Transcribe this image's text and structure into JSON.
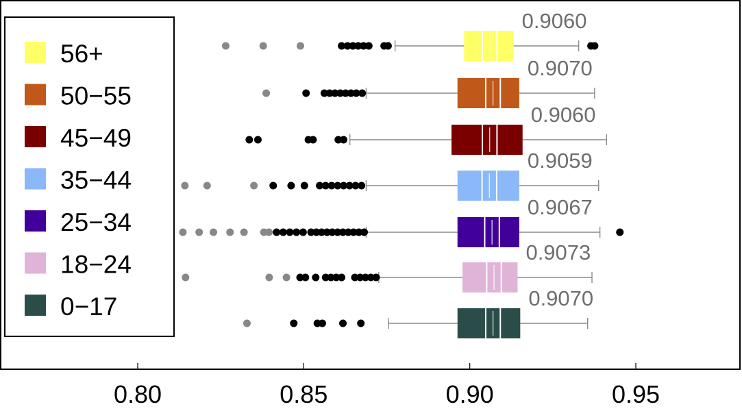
{
  "chart_data": {
    "type": "boxplot",
    "orientation": "horizontal",
    "xlim": [
      0.765,
      0.98
    ],
    "x_ticks": [
      0.8,
      0.85,
      0.9,
      0.95
    ],
    "x_tick_labels": [
      "0.80",
      "0.85",
      "0.90",
      "0.95"
    ],
    "xlabel": "",
    "ylabel": "",
    "title": "",
    "grid": false,
    "legend_position": "left",
    "series": [
      {
        "name": "56+",
        "color": "#ffff66",
        "min": 0.8775,
        "q1": 0.8983,
        "median": 0.906,
        "q3": 0.9132,
        "max": 0.9328,
        "notch_low": 0.9038,
        "notch_high": 0.9082,
        "median_label": "0.9060",
        "outliers_mild": [
          0.8614,
          0.8632,
          0.8648,
          0.8664,
          0.868,
          0.8696,
          0.8742,
          0.8754,
          0.9365,
          0.9376
        ],
        "outliers_extreme": [
          0.8265,
          0.8378,
          0.849
        ]
      },
      {
        "name": "50-55",
        "color": "#c0581a",
        "min": 0.8688,
        "q1": 0.8963,
        "median": 0.907,
        "q3": 0.9149,
        "max": 0.9376,
        "notch_low": 0.9048,
        "notch_high": 0.9092,
        "median_label": "0.9070",
        "outliers_mild": [
          0.8507,
          0.8562,
          0.8578,
          0.8594,
          0.861,
          0.8626,
          0.8642,
          0.8658,
          0.8676
        ],
        "outliers_extreme": [
          0.8387
        ]
      },
      {
        "name": "45-49",
        "color": "#7a0000",
        "min": 0.8639,
        "q1": 0.8945,
        "median": 0.906,
        "q3": 0.9159,
        "max": 0.9412,
        "notch_low": 0.9038,
        "notch_high": 0.9082,
        "median_label": "0.9060",
        "outliers_mild": [
          0.8336,
          0.8362,
          0.8514,
          0.8528,
          0.8604,
          0.862
        ],
        "outliers_extreme": []
      },
      {
        "name": "35-44",
        "color": "#8ab8f8",
        "min": 0.8688,
        "q1": 0.8963,
        "median": 0.9059,
        "q3": 0.9149,
        "max": 0.9388,
        "notch_low": 0.9037,
        "notch_high": 0.9081,
        "median_label": "0.9059",
        "outliers_mild": [
          0.8408,
          0.8462,
          0.8502,
          0.8548,
          0.8566,
          0.8584,
          0.8602,
          0.862,
          0.8638,
          0.8656,
          0.8674
        ],
        "outliers_extreme": [
          0.8142,
          0.8209,
          0.835
        ]
      },
      {
        "name": "25-34",
        "color": "#42009a",
        "min": 0.8688,
        "q1": 0.8963,
        "median": 0.9067,
        "q3": 0.9149,
        "max": 0.9392,
        "notch_low": 0.9045,
        "notch_high": 0.9089,
        "median_label": "0.9067",
        "outliers_mild": [
          0.8418,
          0.8438,
          0.8458,
          0.8478,
          0.8498,
          0.8522,
          0.8538,
          0.8554,
          0.857,
          0.8586,
          0.8602,
          0.8618,
          0.8634,
          0.865,
          0.8666,
          0.8682,
          0.9452
        ],
        "outliers_extreme": [
          0.8136,
          0.8185,
          0.8228,
          0.8278,
          0.832,
          0.838,
          0.8395
        ]
      },
      {
        "name": "18-24",
        "color": "#e0b4d8",
        "min": 0.8726,
        "q1": 0.8978,
        "median": 0.9073,
        "q3": 0.9144,
        "max": 0.9368,
        "notch_low": 0.9051,
        "notch_high": 0.9095,
        "median_label": "0.9073",
        "outliers_mild": [
          0.8489,
          0.8505,
          0.8536,
          0.8566,
          0.8582,
          0.8598,
          0.8614,
          0.8654,
          0.867,
          0.8686,
          0.8702,
          0.8718
        ],
        "outliers_extreme": [
          0.8144,
          0.8396,
          0.8448
        ]
      },
      {
        "name": "0-17",
        "color": "#2b4d4a",
        "min": 0.8755,
        "q1": 0.8963,
        "median": 0.907,
        "q3": 0.9152,
        "max": 0.9355,
        "notch_low": 0.9048,
        "notch_high": 0.9092,
        "median_label": "0.9070",
        "outliers_mild": [
          0.847,
          0.8541,
          0.8556,
          0.8618,
          0.8672
        ],
        "outliers_extreme": [
          0.8329
        ]
      }
    ]
  }
}
